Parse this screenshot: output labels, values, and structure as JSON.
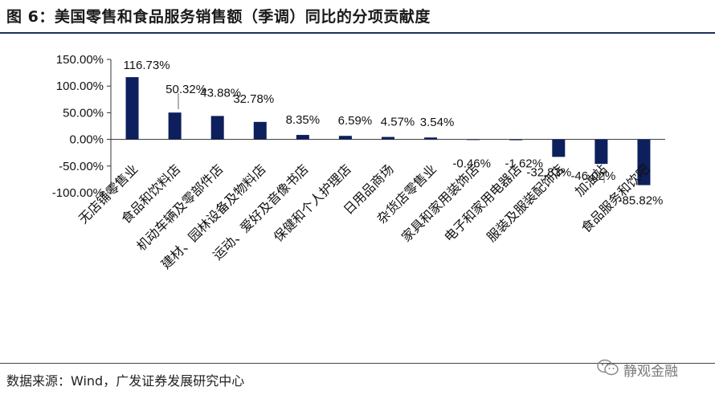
{
  "header": {
    "title": "图 6：美国零售和食品服务销售额（季调）同比的分项贡献度"
  },
  "footer": {
    "source": "数据来源：Wind，广发证券发展研究中心"
  },
  "watermark": {
    "text": "静观金融",
    "icon": "wechat-icon"
  },
  "colors": {
    "bar": "#0d1f5c",
    "rule": "#1f2f5a"
  },
  "chart_data": {
    "type": "bar",
    "categories": [
      "无店铺零售业",
      "食品和饮料店",
      "机动车辆及零部件店",
      "建材、园林设备及物料店",
      "运动、爱好及音像书店",
      "保健和个人护理店",
      "日用品商场",
      "杂货店零售业",
      "家具和家用装饰店",
      "电子和家用电器店",
      "服装及服装配饰店",
      "加油站",
      "食品服务和饮吧"
    ],
    "values": [
      116.73,
      50.32,
      43.88,
      32.78,
      8.35,
      6.59,
      4.57,
      3.54,
      -0.46,
      -1.62,
      -32.83,
      -46.02,
      -85.82
    ],
    "data_labels": [
      "116.73%",
      "50.32%",
      "43.88%",
      "32.78%",
      "8.35%",
      "6.59%",
      "4.57%",
      "3.54%",
      "-0.46%",
      "-1.62%",
      "-32.83%",
      "-46.02%",
      "-85.82%"
    ],
    "ylim": [
      -100,
      150
    ],
    "yticks": [
      150,
      100,
      50,
      0,
      -50,
      -100
    ],
    "ytick_labels": [
      "150.00%",
      "100.00%",
      "50.00%",
      "0.00%",
      "-50.00%",
      "-100.00%"
    ],
    "title": "",
    "xlabel": "",
    "ylabel": "",
    "grid": false,
    "legend": "none"
  }
}
